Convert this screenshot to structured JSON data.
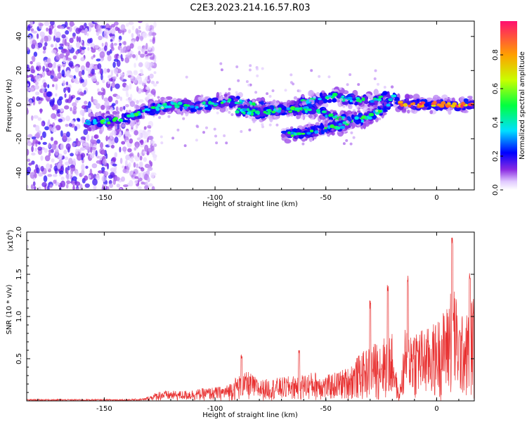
{
  "figure": {
    "title": "C2E3.2023.214.16.57.R03"
  },
  "chart_data": [
    {
      "type": "heatmap",
      "title": "C2E3.2023.214.16.57.R03",
      "xlabel": "Height of straight line (km)",
      "ylabel": "Frequency (Hz)",
      "xlim": [
        -185,
        17
      ],
      "ylim": [
        -50,
        49
      ],
      "xticks": [
        -150,
        -100,
        -50,
        0
      ],
      "xtick_labels": [
        "-150",
        "-100",
        "-50",
        "0"
      ],
      "yticks": [
        -40,
        -20,
        0,
        20,
        40
      ],
      "ytick_labels": [
        "-40",
        "-20",
        "0",
        "20",
        "40"
      ],
      "colorbar": {
        "label": "Normalized spectral amplitude",
        "range": [
          0,
          1
        ],
        "ticks": [
          0.0,
          0.2,
          0.4,
          0.6,
          0.8
        ],
        "tick_labels": [
          "0.0",
          "0.2",
          "0.4",
          "0.6",
          "0.8"
        ],
        "colormap": "rainbow"
      },
      "ridges": [
        {
          "name": "main",
          "points": [
            [
              -158,
              -10
            ],
            [
              -150,
              -10
            ],
            [
              -140,
              -8
            ],
            [
              -130,
              -3
            ],
            [
              -120,
              0
            ],
            [
              -110,
              -1
            ],
            [
              -100,
              1
            ],
            [
              -90,
              2
            ],
            [
              -80,
              -1
            ],
            [
              -70,
              -3
            ],
            [
              -60,
              2
            ],
            [
              -50,
              4
            ],
            [
              -45,
              5
            ],
            [
              -40,
              3
            ],
            [
              -30,
              2
            ],
            [
              -25,
              4
            ],
            [
              -20,
              6
            ],
            [
              -18,
              1
            ],
            [
              -10,
              0
            ],
            [
              0,
              0
            ],
            [
              10,
              0
            ],
            [
              17,
              0
            ]
          ]
        },
        {
          "name": "lower",
          "points": [
            [
              -90,
              -3
            ],
            [
              -80,
              -5
            ],
            [
              -70,
              -3
            ],
            [
              -55,
              -3
            ],
            [
              -45,
              -8
            ],
            [
              -38,
              -10
            ],
            [
              -30,
              -7
            ],
            [
              -25,
              -3
            ],
            [
              -20,
              3
            ]
          ]
        },
        {
          "name": "weak",
          "points": [
            [
              -70,
              -18
            ],
            [
              -60,
              -17
            ],
            [
              -50,
              -14
            ],
            [
              -42,
              -12
            ],
            [
              -35,
              -8
            ]
          ]
        }
      ],
      "noise_region_x": [
        -185,
        -133
      ]
    },
    {
      "type": "line",
      "title": "",
      "xlabel": "Height of straight line (km)",
      "ylabel": "SNR (10 * v/v)",
      "scale_label": "(x10",
      "scale_exponent": "4",
      "scale_suffix": ")",
      "xlim": [
        -185,
        17
      ],
      "ylim": [
        0,
        2.0
      ],
      "xticks": [
        -150,
        -100,
        -50,
        0
      ],
      "xtick_labels": [
        "-150",
        "-100",
        "-50",
        "0"
      ],
      "yticks": [
        0.5,
        1.0,
        1.5,
        2.0
      ],
      "ytick_labels": [
        "0.5",
        "1.0",
        "1.5",
        "2.0"
      ],
      "series": [
        {
          "color": "#e83030",
          "envelope": [
            [
              -185,
              0.02
            ],
            [
              -140,
              0.02
            ],
            [
              -132,
              0.03
            ],
            [
              -128,
              0.08
            ],
            [
              -125,
              0.12
            ],
            [
              -115,
              0.12
            ],
            [
              -105,
              0.15
            ],
            [
              -95,
              0.18
            ],
            [
              -90,
              0.3
            ],
            [
              -85,
              0.35
            ],
            [
              -80,
              0.25
            ],
            [
              -70,
              0.28
            ],
            [
              -60,
              0.32
            ],
            [
              -55,
              0.35
            ],
            [
              -50,
              0.3
            ],
            [
              -45,
              0.35
            ],
            [
              -40,
              0.4
            ],
            [
              -35,
              0.55
            ],
            [
              -30,
              0.65
            ],
            [
              -25,
              0.75
            ],
            [
              -20,
              0.8
            ],
            [
              -17,
              0.05
            ],
            [
              -14,
              0.9
            ],
            [
              -10,
              0.9
            ],
            [
              -5,
              0.85
            ],
            [
              0,
              0.95
            ],
            [
              5,
              1.15
            ],
            [
              7,
              1.6
            ],
            [
              10,
              1.0
            ],
            [
              14,
              1.05
            ],
            [
              17,
              1.35
            ]
          ],
          "peaks": [
            [
              -88,
              0.55
            ],
            [
              -62,
              0.6
            ],
            [
              -30,
              1.2
            ],
            [
              -22,
              1.4
            ],
            [
              -13,
              1.5
            ],
            [
              7,
              2.0
            ],
            [
              15,
              1.55
            ]
          ]
        }
      ]
    }
  ]
}
